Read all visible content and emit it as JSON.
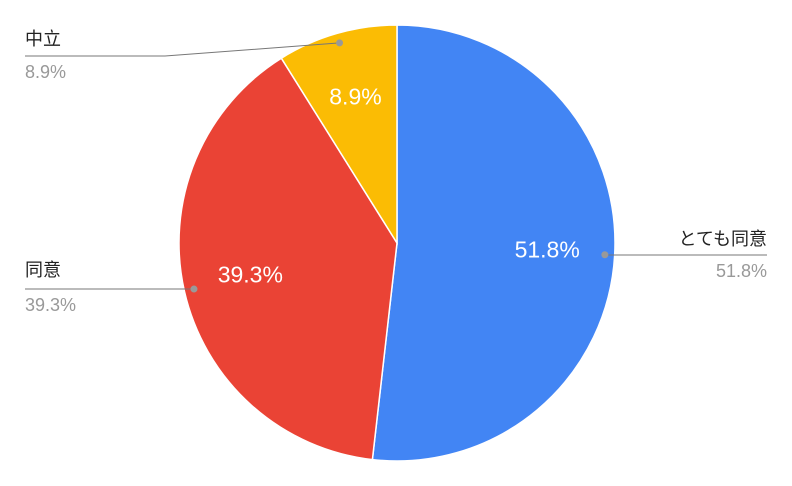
{
  "chart_data": {
    "type": "pie",
    "categories": [
      "とても同意",
      "同意",
      "中立"
    ],
    "values": [
      51.8,
      39.3,
      8.9
    ],
    "value_labels": [
      "51.8%",
      "39.3%",
      "8.9%"
    ],
    "colors": [
      "#4285f4",
      "#ea4335",
      "#fbbc04"
    ]
  }
}
